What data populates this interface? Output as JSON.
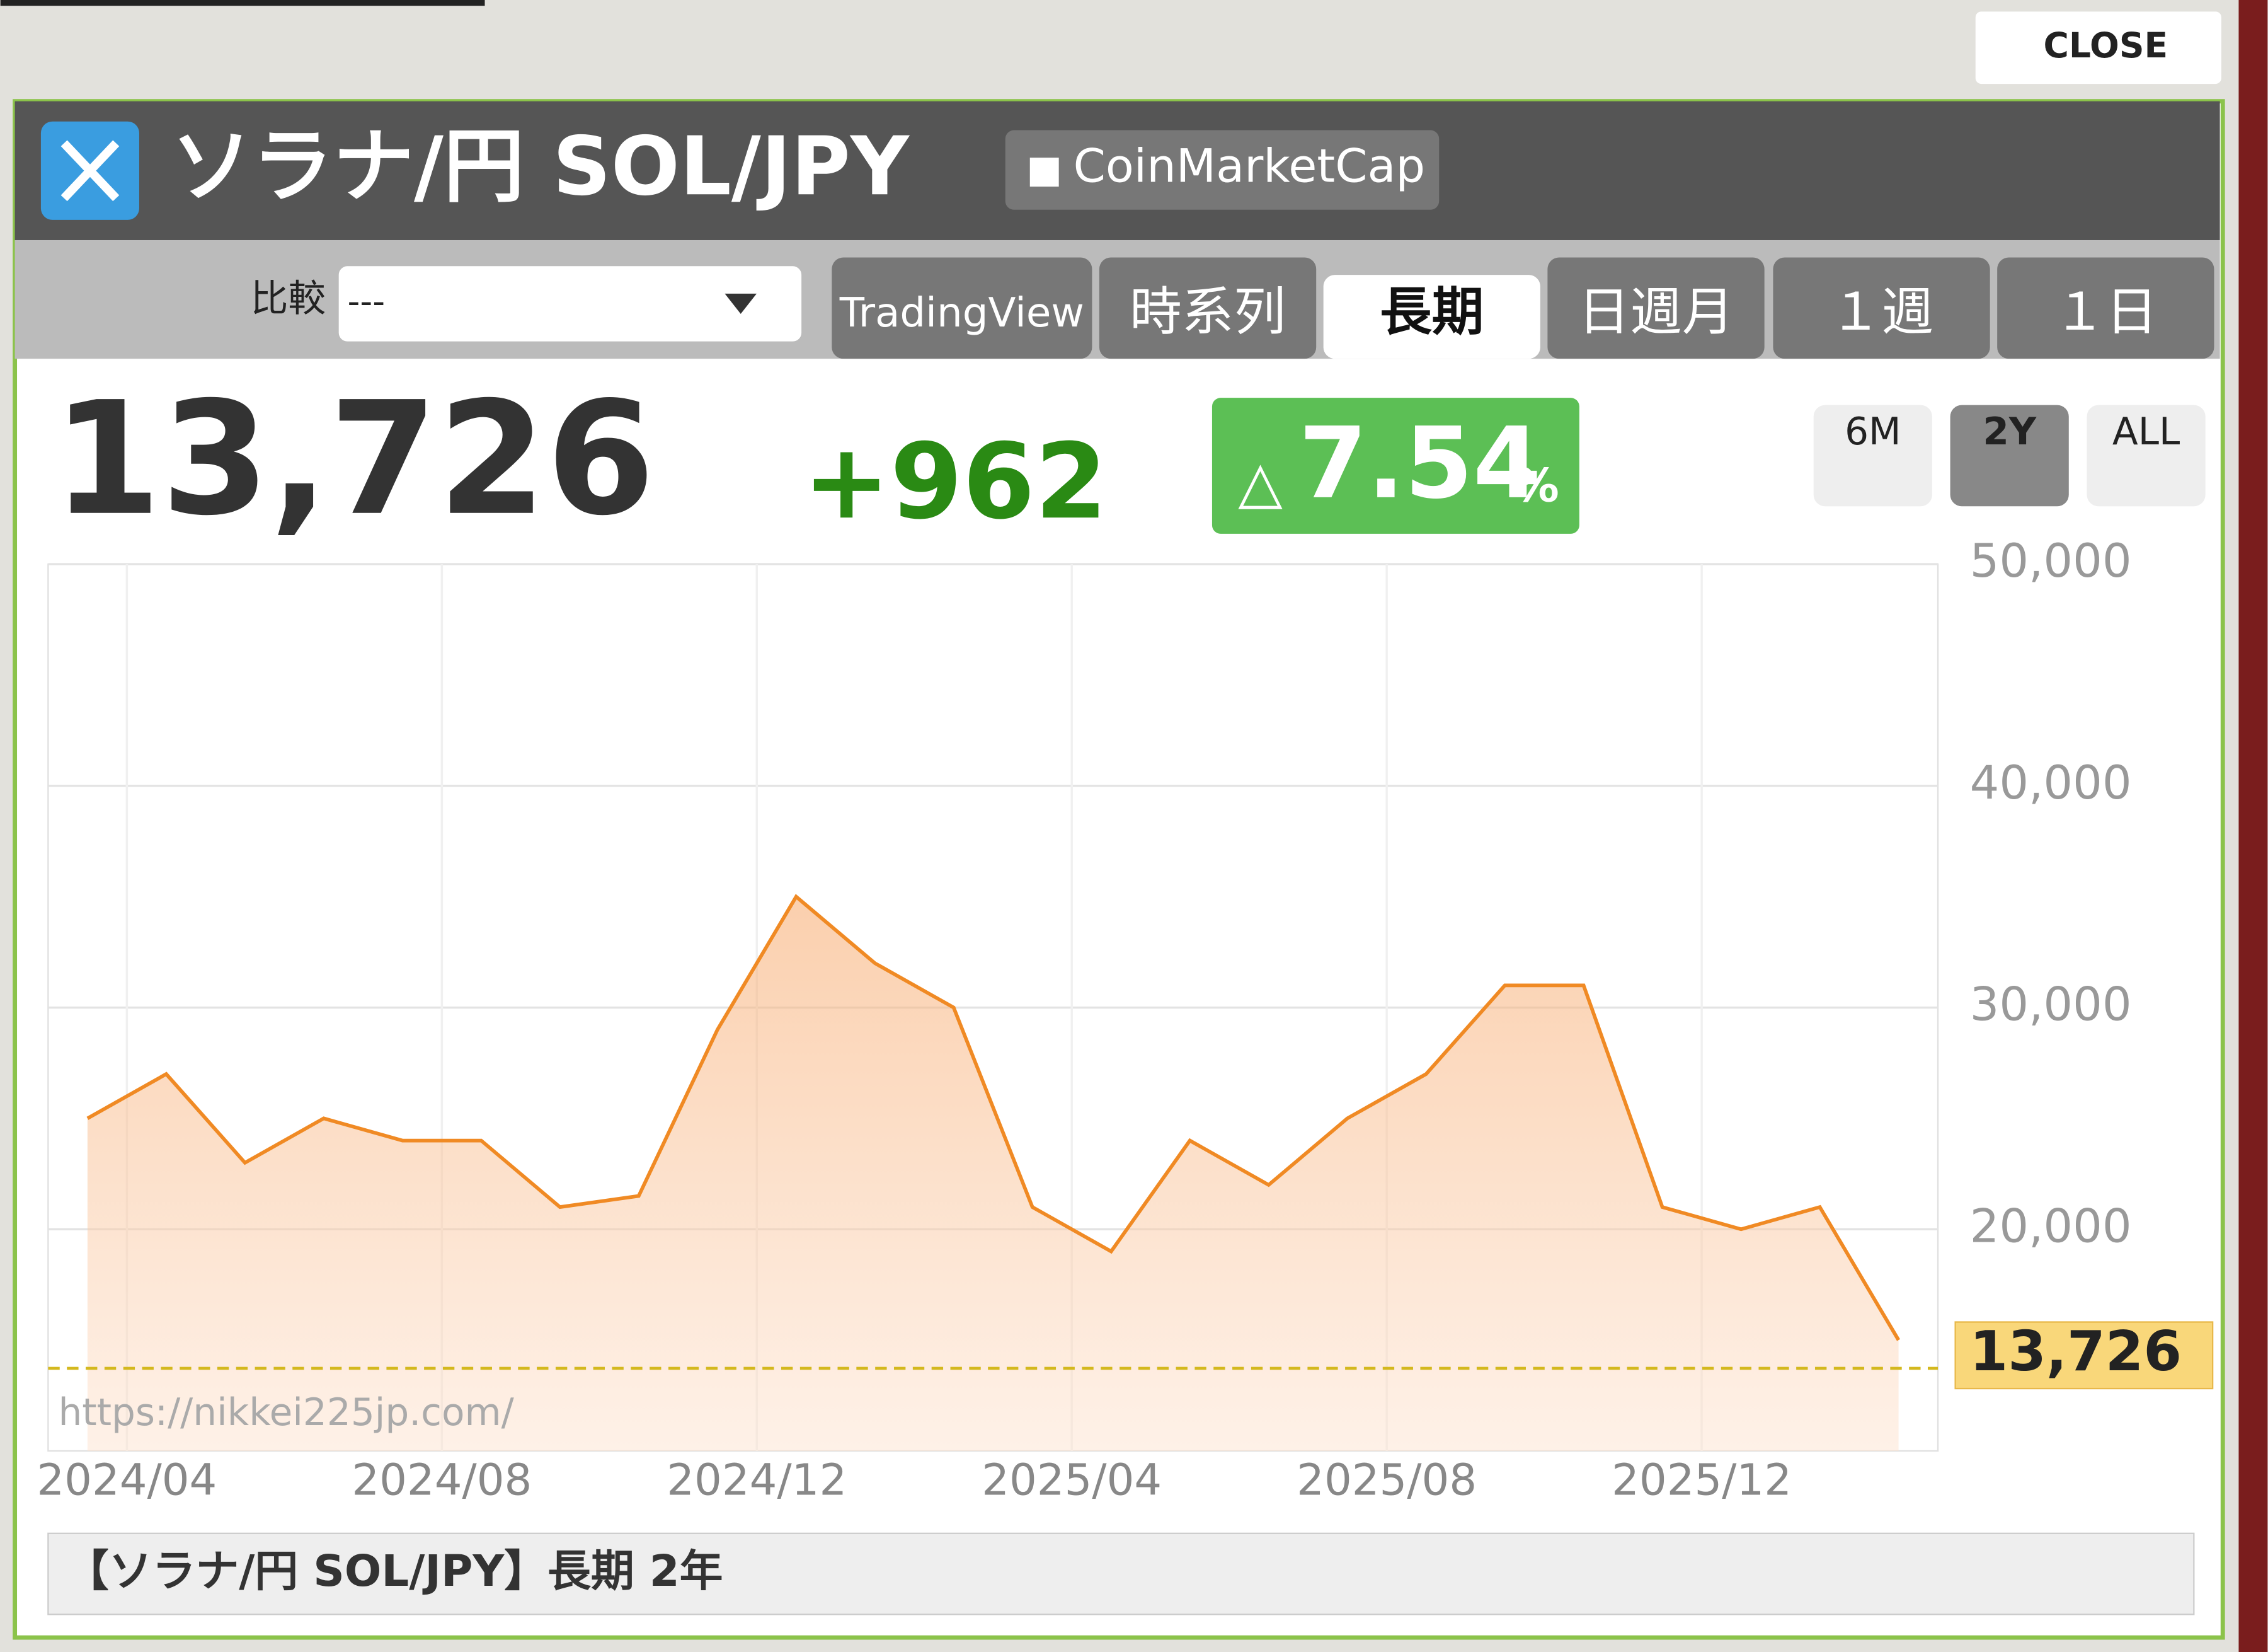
{
  "close": "CLOSE",
  "header": {
    "title": "ソラナ/円 SOL/JPY",
    "link": "CoinMarketCap"
  },
  "compare": {
    "label": "比較",
    "selected": "---"
  },
  "tabs": [
    "TradingView",
    "時系列",
    "長期",
    "日週月",
    "１週",
    "１日"
  ],
  "active_tab": 2,
  "quote": {
    "price": "13,726",
    "change": "+962",
    "up_mark": "△",
    "change_pct": "7.54",
    "pct_unit": "%"
  },
  "ranges": [
    "6M",
    "2Y",
    "ALL"
  ],
  "active_range": 1,
  "watermark": "https://nikkei225jp.com/",
  "caption": "【ソラナ/円 SOL/JPY】長期 2年",
  "chart_data": {
    "type": "area",
    "x": [
      "2024/03",
      "2024/04",
      "2024/05",
      "2024/06",
      "2024/07",
      "2024/08",
      "2024/09",
      "2024/10",
      "2024/11",
      "2024/12",
      "2025/01",
      "2025/02",
      "2025/03",
      "2025/04",
      "2025/05",
      "2025/06",
      "2025/07",
      "2025/08",
      "2025/09",
      "2025/10",
      "2025/11",
      "2025/12",
      "2026/01",
      "2026/02"
    ],
    "values": [
      25000,
      27000,
      23000,
      25000,
      24000,
      24000,
      21000,
      21500,
      29000,
      35000,
      32000,
      30000,
      21000,
      19000,
      24000,
      22000,
      25000,
      27000,
      31000,
      31000,
      21000,
      20000,
      21000,
      15000
    ],
    "color": "#f08a24",
    "current": {
      "value": 13726,
      "label": "13,726"
    },
    "ylim": [
      10000,
      50000
    ],
    "yticks": [
      {
        "value": 20000,
        "label": "20,000"
      },
      {
        "value": 30000,
        "label": "30,000"
      },
      {
        "value": 40000,
        "label": "40,000"
      },
      {
        "value": 50000,
        "label": "50,000"
      }
    ],
    "xticks": [
      "2024/04",
      "2024/08",
      "2024/12",
      "2025/04",
      "2025/08",
      "2025/12"
    ],
    "grid": true
  }
}
